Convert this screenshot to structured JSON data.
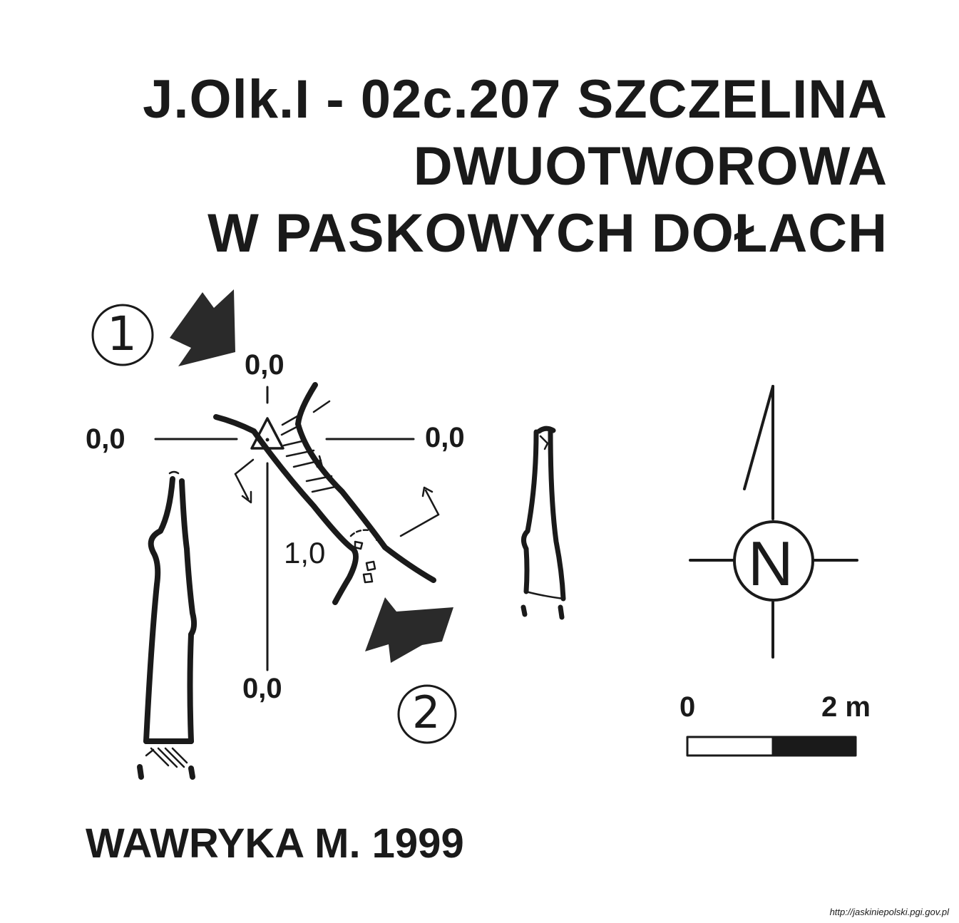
{
  "title": {
    "line1": "J.Olk.I - 02c.207  SZCZELINA",
    "line2": "DWUOTWOROWA",
    "line3": "W PASKOWYCH DOŁACH"
  },
  "entrances": [
    {
      "label": "①"
    },
    {
      "label": "②"
    }
  ],
  "elevations": {
    "top": "0,0",
    "left": "0,0",
    "right": "0,0",
    "bottom": "0,0",
    "inner": "1,0"
  },
  "north_label": "N",
  "scale": {
    "start_label": "0",
    "end_label": "2 m"
  },
  "author": "WAWRYKA M. 1999",
  "source_url": "http://jaskiniepolski.pgi.gov.pl",
  "colors": {
    "ink": "#1a1a1a",
    "arrow_fill": "#2a2a2a"
  }
}
